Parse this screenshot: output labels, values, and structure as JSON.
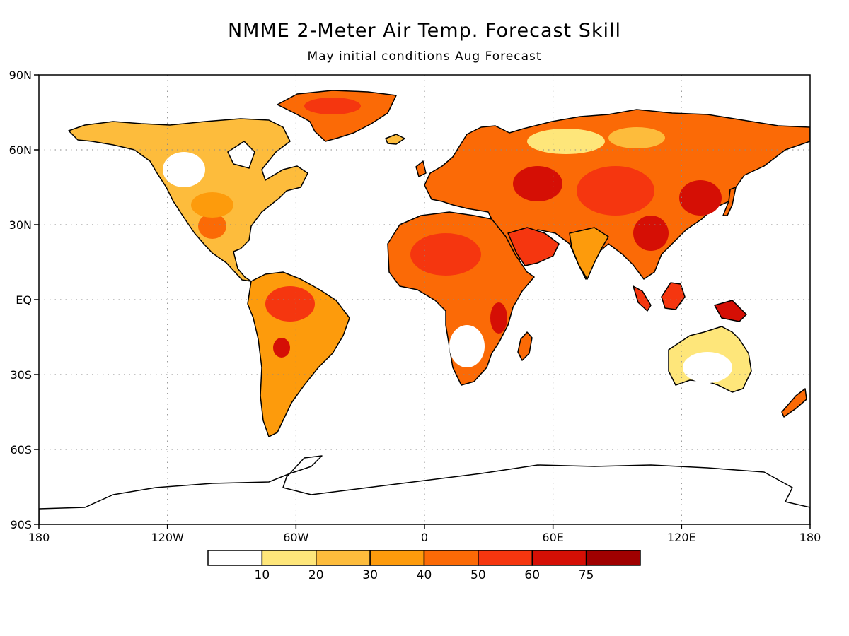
{
  "title": "NMME 2-Meter Air Temp. Forecast Skill",
  "subtitle": "May initial conditions  Aug Forecast",
  "map": {
    "lon_range": [
      -180,
      180
    ],
    "lat_range": [
      -90,
      90
    ],
    "lon_ticks": [
      {
        "value": -180,
        "label": "180"
      },
      {
        "value": -120,
        "label": "120W"
      },
      {
        "value": -60,
        "label": "60W"
      },
      {
        "value": 0,
        "label": "0"
      },
      {
        "value": 60,
        "label": "60E"
      },
      {
        "value": 120,
        "label": "120E"
      },
      {
        "value": 180,
        "label": "180"
      }
    ],
    "lat_ticks": [
      {
        "value": 90,
        "label": "90N"
      },
      {
        "value": 60,
        "label": "60N"
      },
      {
        "value": 30,
        "label": "30N"
      },
      {
        "value": 0,
        "label": "EQ"
      },
      {
        "value": -30,
        "label": "30S"
      },
      {
        "value": -60,
        "label": "60S"
      },
      {
        "value": -90,
        "label": "90S"
      }
    ],
    "grid": "dotted",
    "ocean_color": "#ffffff",
    "coastline_color": "#000000"
  },
  "colorbar": {
    "colors": [
      "#ffffff",
      "#fee67a",
      "#fdbc3c",
      "#fd9b0c",
      "#fb6a06",
      "#f5360f",
      "#d50f05",
      "#a00000"
    ],
    "labels": [
      "10",
      "20",
      "30",
      "40",
      "50",
      "60",
      "75"
    ]
  }
}
